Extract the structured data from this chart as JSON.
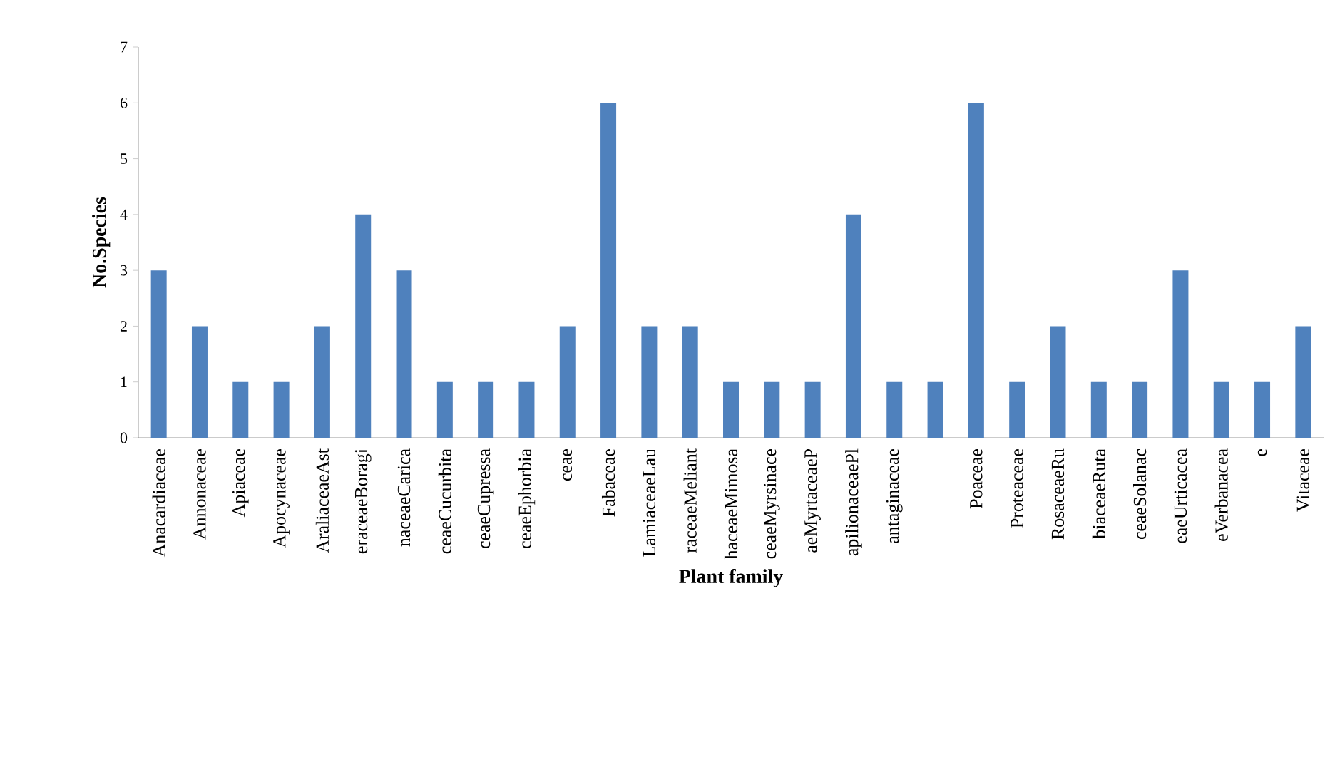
{
  "chart_data": {
    "type": "bar",
    "xlabel": "Plant family",
    "ylabel": "No.Species",
    "categories": [
      "Anacardiaceae",
      "Annonaceae",
      "Apiaceae",
      "Apocynaceae",
      "AraliaceaeAst",
      "eraceaeBoragi",
      "naceaeCarica",
      "ceaeCucurbita",
      "ceaeCupressa",
      "ceaeEphorbia",
      "ceae",
      "Fabaceae",
      "LamiaceaeLau",
      "raceaeMeliant",
      "haceaeMimosa",
      "ceaeMyrsinace",
      "aeMyrtaceaeP",
      "apilionaceaePl",
      "antaginaceae",
      null,
      "Poaceae",
      "Proteaceae",
      "RosaceaeRu",
      "biaceaeRuta",
      "ceaeSolanac",
      "eaeUrticacea",
      "eVerbanacea",
      "e",
      "Vitaceae"
    ],
    "values": [
      3,
      2,
      1,
      1,
      2,
      4,
      3,
      1,
      1,
      1,
      2,
      6,
      2,
      2,
      1,
      1,
      1,
      4,
      1,
      1,
      6,
      1,
      2,
      1,
      1,
      3,
      1,
      1,
      2
    ],
    "color": "#4f81bd",
    "ylim": [
      0,
      7
    ],
    "yticks": [
      0,
      1,
      2,
      3,
      4,
      5,
      6,
      7
    ]
  }
}
